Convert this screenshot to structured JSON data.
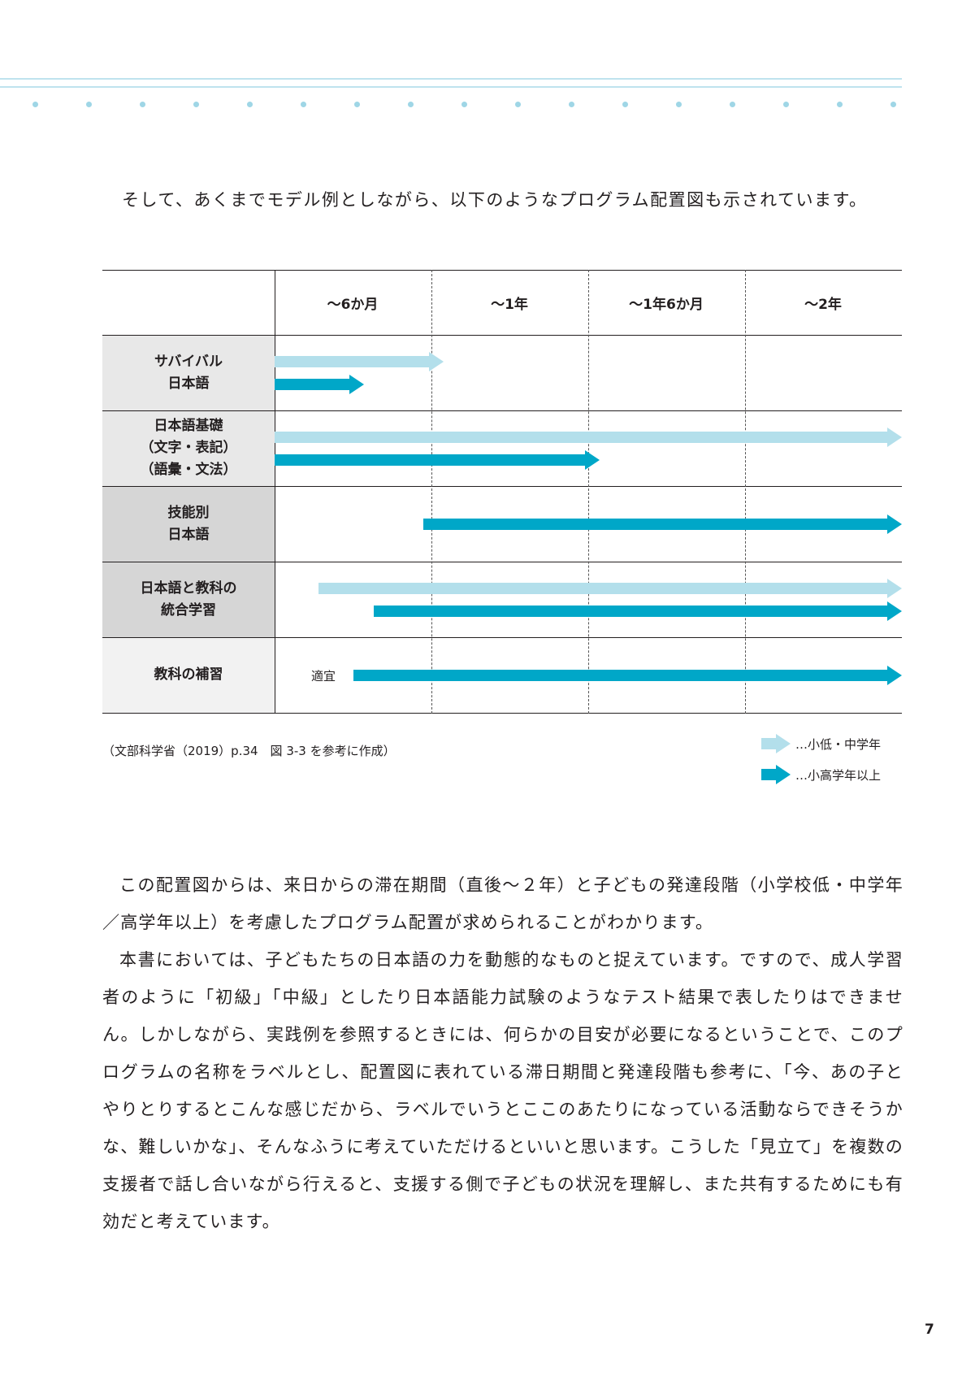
{
  "intro": "そして、あくまでモデル例としながら、以下のようなプログラム配置図も示されています。",
  "table": {
    "columns": [
      "～6か月",
      "～1年",
      "～1年6か月",
      "～2年"
    ],
    "rows": [
      {
        "label": "サバイバル\n日本語",
        "shade": "#e8e8e8",
        "arrows": [
          {
            "kind": "light",
            "from": 0,
            "to": 1.08
          },
          {
            "kind": "dark",
            "from": 0,
            "to": 0.57
          }
        ]
      },
      {
        "label": "日本語基礎\n（文字・表記）\n（語彙・文法）",
        "shade": "#e8e8e8",
        "arrows": [
          {
            "kind": "light",
            "from": 0,
            "to": 4
          },
          {
            "kind": "dark",
            "from": 0,
            "to": 2.07
          }
        ]
      },
      {
        "label": "技能別\n日本語",
        "shade": "#d6d6d6",
        "arrows": [
          {
            "kind": "dark",
            "from": 0.95,
            "to": 4
          }
        ]
      },
      {
        "label": "日本語と教科の\n統合学習",
        "shade": "#d6d6d6",
        "arrows": [
          {
            "kind": "light",
            "from": 0.28,
            "to": 4
          },
          {
            "kind": "dark",
            "from": 0.63,
            "to": 4
          }
        ]
      },
      {
        "label": "教科の補習",
        "shade": "#f2f2f2",
        "note": "適宜",
        "arrows": [
          {
            "kind": "dark",
            "from": 0.5,
            "to": 4
          }
        ]
      }
    ]
  },
  "source": "（文部科学省（2019）p.34　図 3-3 を参考に作成）",
  "legend": {
    "light_label": "…小低・中学年",
    "dark_label": "…小高学年以上"
  },
  "paragraphs": [
    "この配置図からは、来日からの滞在期間（直後～２年）と子どもの発達段階（小学校低・中学年／高学年以上）を考慮したプログラム配置が求められることがわかります。",
    "本書においては、子どもたちの日本語の力を動態的なものと捉えています。ですので、成人学習者のように「初級」「中級」としたり日本語能力試験のようなテスト結果で表したりはできません。しかしながら、実践例を参照するときには、何らかの目安が必要になるということで、このプログラムの名称をラベルとし、配置図に表れている滞日期間と発達段階も参考に、「今、あの子とやりとりするとこんな感じだから、ラベルでいうとここのあたりになっている活動ならできそうかな、難しいかな」、そんなふうに考えていただけるといいと思います。こうした「見立て」を複数の支援者で話し合いながら行えると、支援する側で子どもの状況を理解し、また共有するためにも有効だと考えています。"
  ],
  "page_number": "7"
}
